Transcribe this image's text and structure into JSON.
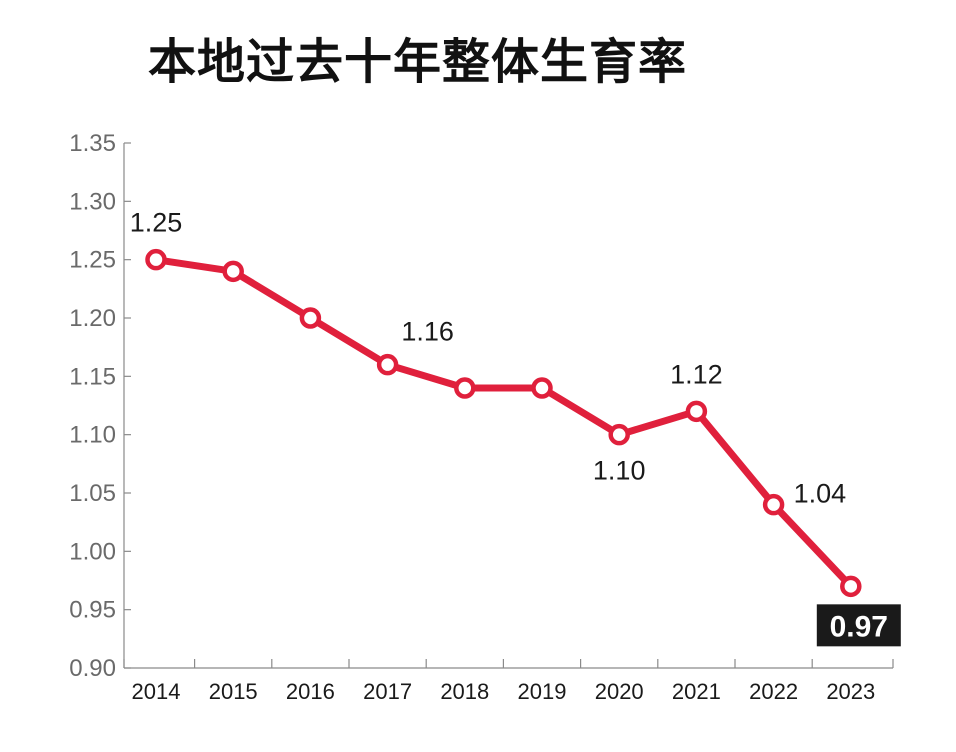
{
  "chart_data": {
    "type": "line",
    "title": "本地过去十年整体生育率",
    "x": [
      "2014",
      "2015",
      "2016",
      "2017",
      "2018",
      "2019",
      "2020",
      "2021",
      "2022",
      "2023"
    ],
    "series": [
      {
        "values": [
          1.25,
          1.24,
          1.2,
          1.16,
          1.14,
          1.14,
          1.1,
          1.12,
          1.04,
          0.97
        ],
        "color": "#e0203c"
      }
    ],
    "yticks": [
      "0.90",
      "0.95",
      "1.00",
      "1.05",
      "1.10",
      "1.15",
      "1.20",
      "1.25",
      "1.30",
      "1.35"
    ],
    "ylim": [
      0.9,
      1.35
    ],
    "grid": false,
    "legend": "none",
    "annotations": [
      {
        "index": 0,
        "text": "1.25",
        "placement": "above"
      },
      {
        "index": 3,
        "text": "1.16",
        "placement": "above-right"
      },
      {
        "index": 6,
        "text": "1.10",
        "placement": "below"
      },
      {
        "index": 7,
        "text": "1.12",
        "placement": "above"
      },
      {
        "index": 8,
        "text": "1.04",
        "placement": "right"
      },
      {
        "index": 9,
        "text": "0.97",
        "placement": "below",
        "highlight": true
      }
    ],
    "highlight_box_color": "#1a1a1a"
  }
}
